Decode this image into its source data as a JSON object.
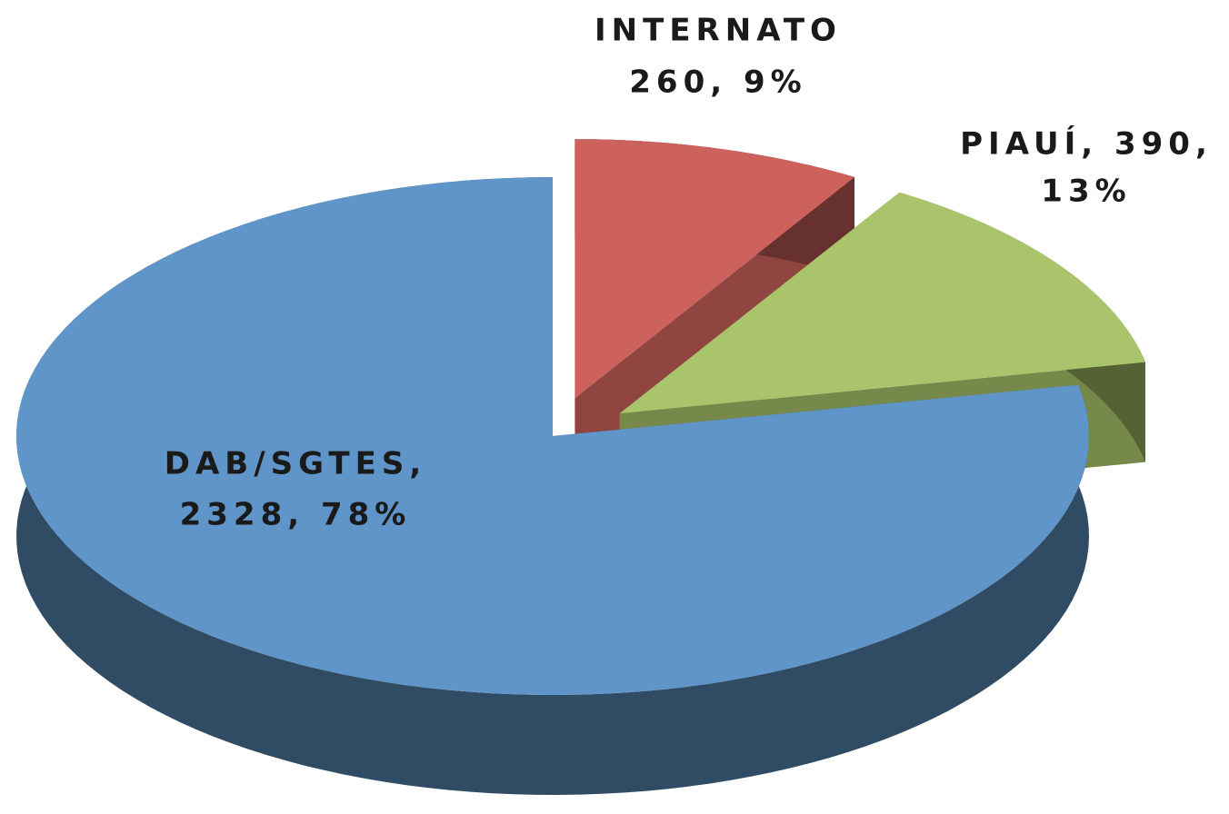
{
  "chart_data": {
    "type": "pie3d",
    "values": [
      260,
      390,
      2328
    ],
    "value_labels": [
      [
        "INTERNATO",
        "260, 9%"
      ],
      [
        "PIAUÍ, 390,",
        "13%"
      ],
      [
        "DAB/SGTES,",
        "2328, 78%"
      ]
    ],
    "colors": [
      "#cd625d",
      "#a9c46a",
      "#5f95c8"
    ],
    "exploded": [
      true,
      true,
      false
    ]
  }
}
